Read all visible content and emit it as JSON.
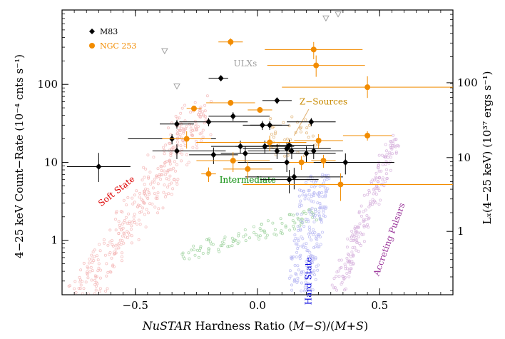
{
  "chart_data": {
    "type": "scatter",
    "xlabel_parts": [
      "NuSTAR",
      " Hardness Ratio (",
      "M",
      "−",
      "S",
      ")/(",
      "M",
      "+",
      "S",
      ")"
    ],
    "ylabel_left": "4−25 keV Count−Rate (10⁻⁴ cnts s⁻¹)",
    "ylabel_right": "Lₓ(4−25 keV) (10³⁷ ergs s⁻¹)",
    "xlim": [
      -0.8,
      0.8
    ],
    "ylim": [
      0.2,
      900
    ],
    "yscale": "log",
    "x_ticks": [
      -0.5,
      0.0,
      0.5
    ],
    "x_tick_labels": [
      "−0.5",
      "0.0",
      "0.5"
    ],
    "y_ticks": [
      1,
      10,
      100
    ],
    "y_tick_labels": [
      "1",
      "10",
      "100"
    ],
    "right_y_ticks": [
      1.3,
      11.5,
      105
    ],
    "right_y_tick_labels": [
      "1",
      "10",
      "100"
    ],
    "legend_position": "top-left",
    "colors": {
      "M83": "#000000",
      "NGC 253": "#f28c00",
      "ulx": "#a0a0a0",
      "soft": "#f4b6b6",
      "intermediate": "#9ed29e",
      "hard": "#b7b7f3",
      "pulsars": "#d6b0dc",
      "zsource": "#e0b070"
    },
    "annotations": [
      {
        "text": "ULXs",
        "x": -0.05,
        "y": 170,
        "color": "#a0a0a0",
        "rotate": 0
      },
      {
        "text": "Z−Sources",
        "x": 0.27,
        "y": 55,
        "color": "#c88a00",
        "rotate": 0
      },
      {
        "text": "Soft State",
        "x": -0.57,
        "y": 4.0,
        "color": "#dd0000",
        "rotate": -38
      },
      {
        "text": "Intermediate",
        "x": -0.04,
        "y": 5.5,
        "color": "#008800",
        "rotate": 0
      },
      {
        "text": "Hard State",
        "x": 0.22,
        "y": 0.3,
        "color": "#0000dd",
        "rotate": -90
      },
      {
        "text": "Accreting Pulsars",
        "x": 0.55,
        "y": 1.0,
        "color": "#993399",
        "rotate": -70
      }
    ],
    "series": [
      {
        "name": "M83",
        "marker": "diamond",
        "color": "#000000",
        "points": [
          {
            "x": -0.65,
            "y": 8.8,
            "xerr": [
              0.13,
              0.13
            ],
            "yerr": [
              3.2,
              4.4
            ]
          },
          {
            "x": -0.33,
            "y": 31,
            "xerr": [
              0.07,
              0.07
            ],
            "yerr": [
              4,
              4
            ]
          },
          {
            "x": -0.35,
            "y": 20,
            "xerr": [
              0.18,
              0.18
            ],
            "yerr": [
              3,
              3
            ]
          },
          {
            "x": -0.33,
            "y": 14,
            "xerr": [
              0.1,
              0.2
            ],
            "yerr": [
              3,
              3
            ]
          },
          {
            "x": -0.2,
            "y": 33,
            "xerr": [
              0.12,
              0.16
            ],
            "yerr": [
              4,
              4
            ]
          },
          {
            "x": -0.15,
            "y": 120,
            "xerr": [
              0.05,
              0.03
            ],
            "yerr": [
              9,
              9
            ]
          },
          {
            "x": -0.1,
            "y": 39,
            "xerr": [
              0.1,
              0.15
            ],
            "yerr": [
              5,
              5
            ]
          },
          {
            "x": -0.18,
            "y": 12.5,
            "xerr": [
              0.1,
              0.1
            ],
            "yerr": [
              3,
              3
            ]
          },
          {
            "x": -0.07,
            "y": 16,
            "xerr": [
              0.12,
              0.12
            ],
            "yerr": [
              3,
              3
            ]
          },
          {
            "x": -0.05,
            "y": 13,
            "xerr": [
              0.1,
              0.2
            ],
            "yerr": [
              3,
              3
            ]
          },
          {
            "x": 0.02,
            "y": 30,
            "xerr": [
              0.08,
              0.08
            ],
            "yerr": [
              4,
              4
            ]
          },
          {
            "x": 0.05,
            "y": 30,
            "xerr": [
              0.08,
              0.08
            ],
            "yerr": [
              4,
              4
            ]
          },
          {
            "x": 0.08,
            "y": 62,
            "xerr": [
              0.06,
              0.06
            ],
            "yerr": [
              6,
              6
            ]
          },
          {
            "x": 0.03,
            "y": 16,
            "xerr": [
              0.12,
              0.12
            ],
            "yerr": [
              3,
              3
            ]
          },
          {
            "x": 0.08,
            "y": 14,
            "xerr": [
              0.12,
              0.12
            ],
            "yerr": [
              3,
              3
            ]
          },
          {
            "x": 0.12,
            "y": 15,
            "xerr": [
              0.18,
              0.18
            ],
            "yerr": [
              3,
              3
            ]
          },
          {
            "x": 0.13,
            "y": 16.5,
            "xerr": [
              0.1,
              0.1
            ],
            "yerr": [
              3,
              3
            ]
          },
          {
            "x": 0.14,
            "y": 14,
            "xerr": [
              0.08,
              0.08
            ],
            "yerr": [
              3,
              3
            ]
          },
          {
            "x": 0.12,
            "y": 10,
            "xerr": [
              0.2,
              0.2
            ],
            "yerr": [
              2.5,
              2.5
            ]
          },
          {
            "x": 0.13,
            "y": 6,
            "xerr": [
              0.12,
              0.12
            ],
            "yerr": [
              2,
              2
            ]
          },
          {
            "x": 0.15,
            "y": 6.5,
            "xerr": [
              0.2,
              0.2
            ],
            "yerr": [
              2,
              2
            ]
          },
          {
            "x": 0.2,
            "y": 13,
            "xerr": [
              0.12,
              0.12
            ],
            "yerr": [
              3,
              3
            ]
          },
          {
            "x": 0.22,
            "y": 33,
            "xerr": [
              0.1,
              0.1
            ],
            "yerr": [
              4,
              4
            ]
          },
          {
            "x": 0.23,
            "y": 14,
            "xerr": [
              0.1,
              0.12
            ],
            "yerr": [
              3,
              3
            ]
          },
          {
            "x": 0.36,
            "y": 10,
            "xerr": [
              0.2,
              0.2
            ],
            "yerr": [
              3,
              3
            ]
          }
        ]
      },
      {
        "name": "NGC 253",
        "marker": "circle",
        "color": "#f28c00",
        "points": [
          {
            "x": -0.11,
            "y": 350,
            "xerr": [
              0.05,
              0.05
            ],
            "yerr": [
              40,
              40
            ]
          },
          {
            "x": 0.23,
            "y": 280,
            "xerr": [
              0.2,
              0.2
            ],
            "yerr": [
              70,
              70
            ]
          },
          {
            "x": 0.24,
            "y": 175,
            "xerr": [
              0.2,
              0.2
            ],
            "yerr": [
              50,
              60
            ]
          },
          {
            "x": 0.45,
            "y": 92,
            "xerr": [
              0.35,
              0.35
            ],
            "yerr": [
              25,
              35
            ]
          },
          {
            "x": -0.26,
            "y": 49,
            "xerr": [
              0.03,
              0.03
            ],
            "yerr": [
              4,
              4
            ]
          },
          {
            "x": -0.11,
            "y": 58,
            "xerr": [
              0.1,
              0.1
            ],
            "yerr": [
              5,
              5
            ]
          },
          {
            "x": 0.01,
            "y": 47,
            "xerr": [
              0.05,
              0.05
            ],
            "yerr": [
              4,
              4
            ]
          },
          {
            "x": 0.45,
            "y": 22,
            "xerr": [
              0.1,
              0.1
            ],
            "yerr": [
              3,
              3
            ]
          },
          {
            "x": -0.29,
            "y": 20,
            "xerr": [
              0.1,
              0.1
            ],
            "yerr": [
              5,
              5
            ]
          },
          {
            "x": 0.05,
            "y": 18,
            "xerr": [
              0.3,
              0.15
            ],
            "yerr": [
              4,
              4
            ]
          },
          {
            "x": 0.25,
            "y": 19,
            "xerr": [
              0.1,
              0.1
            ],
            "yerr": [
              4,
              4
            ]
          },
          {
            "x": -0.1,
            "y": 10.5,
            "xerr": [
              0.15,
              0.15
            ],
            "yerr": [
              3,
              3
            ]
          },
          {
            "x": -0.04,
            "y": 8.2,
            "xerr": [
              0.1,
              0.1
            ],
            "yerr": [
              2,
              2
            ]
          },
          {
            "x": -0.2,
            "y": 7.1,
            "xerr": [
              0.03,
              0.03
            ],
            "yerr": [
              1.5,
              1.5
            ]
          },
          {
            "x": 0.34,
            "y": 5.2,
            "xerr": [
              0.4,
              0.5
            ],
            "yerr": [
              2,
              2
            ]
          },
          {
            "x": 0.18,
            "y": 10,
            "xerr": [
              0.05,
              0.05
            ],
            "yerr": [
              2,
              2
            ]
          },
          {
            "x": 0.27,
            "y": 10.5,
            "xerr": [
              0.05,
              0.05
            ],
            "yerr": [
              2,
              2
            ]
          }
        ]
      },
      {
        "name": "",
        "marker": "triangle-down",
        "color": "#a0a0a0",
        "points": [
          {
            "x": -0.38,
            "y": 270
          },
          {
            "x": -0.33,
            "y": 95
          },
          {
            "x": 0.28,
            "y": 710
          },
          {
            "x": 0.33,
            "y": 800
          }
        ]
      }
    ]
  }
}
